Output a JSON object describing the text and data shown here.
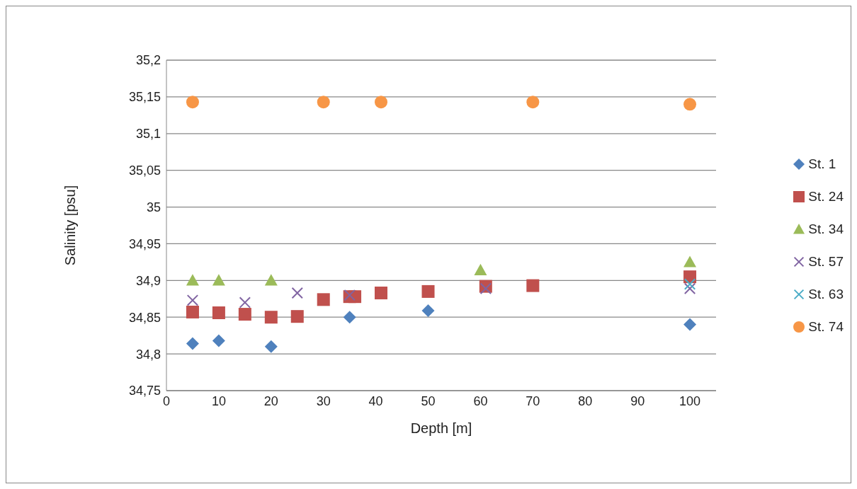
{
  "chart_data": {
    "type": "scatter",
    "xlabel": "Depth [m]",
    "ylabel": "Salinity [psu]",
    "xlim": [
      0,
      105
    ],
    "xticks": [
      0,
      10,
      20,
      30,
      40,
      50,
      60,
      70,
      80,
      90,
      100
    ],
    "ylim": [
      34.75,
      35.2
    ],
    "yticks": [
      {
        "value": 34.75,
        "label": "34,75"
      },
      {
        "value": 34.8,
        "label": "34,8"
      },
      {
        "value": 34.85,
        "label": "34,85"
      },
      {
        "value": 34.9,
        "label": "34,9"
      },
      {
        "value": 34.95,
        "label": "34,95"
      },
      {
        "value": 35,
        "label": "35"
      },
      {
        "value": 35.05,
        "label": "35,05"
      },
      {
        "value": 35.1,
        "label": "35,1"
      },
      {
        "value": 35.15,
        "label": "35,15"
      },
      {
        "value": 35.2,
        "label": "35,2"
      }
    ],
    "grid": "y",
    "legend": "right",
    "series": [
      {
        "name": "St. 1",
        "color": "#4f81bd",
        "marker": "diamond",
        "x": [
          5,
          10,
          20,
          35,
          50,
          100
        ],
        "values": [
          34.814,
          34.818,
          34.81,
          34.85,
          34.859,
          34.84
        ]
      },
      {
        "name": "St. 24",
        "color": "#c0504d",
        "marker": "square",
        "x": [
          5,
          10,
          15,
          20,
          25,
          30,
          35,
          36,
          41,
          50,
          61,
          70,
          100
        ],
        "values": [
          34.857,
          34.856,
          34.854,
          34.85,
          34.851,
          34.874,
          34.878,
          34.878,
          34.883,
          34.885,
          34.892,
          34.893,
          34.905
        ]
      },
      {
        "name": "St. 34",
        "color": "#9bbb59",
        "marker": "triangle",
        "x": [
          5,
          10,
          20,
          60,
          100
        ],
        "values": [
          34.9,
          34.9,
          34.9,
          34.914,
          34.925
        ]
      },
      {
        "name": "St. 57",
        "color": "#8064a2",
        "marker": "cross",
        "x": [
          5,
          15,
          25,
          35,
          61,
          100
        ],
        "values": [
          34.873,
          34.87,
          34.883,
          34.88,
          34.889,
          34.889
        ]
      },
      {
        "name": "St. 63",
        "color": "#4bacc6",
        "marker": "cross",
        "x": [
          100
        ],
        "values": [
          34.895
        ]
      },
      {
        "name": "St. 74",
        "color": "#f79646",
        "marker": "circle",
        "x": [
          5,
          30,
          41,
          70,
          100
        ],
        "values": [
          35.143,
          35.143,
          35.143,
          35.143,
          35.14
        ]
      }
    ]
  }
}
